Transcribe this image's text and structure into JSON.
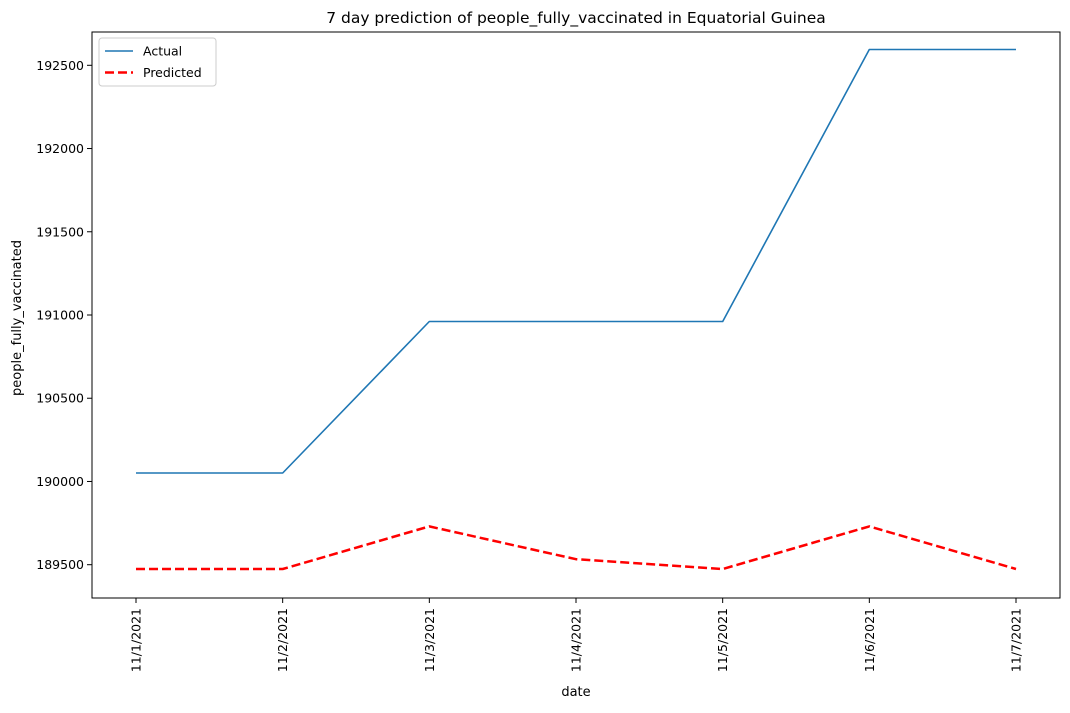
{
  "chart_data": {
    "type": "line",
    "title": "7 day prediction of people_fully_vaccinated in Equatorial Guinea",
    "xlabel": "date",
    "ylabel": "people_fully_vaccinated",
    "x": [
      "11/1/2021",
      "11/2/2021",
      "11/3/2021",
      "11/4/2021",
      "11/5/2021",
      "11/6/2021",
      "11/7/2021"
    ],
    "yticks": [
      "189500",
      "190000",
      "190500",
      "191000",
      "191500",
      "192000",
      "192500"
    ],
    "ylim": [
      189300,
      192700
    ],
    "grid": false,
    "legend_position": "upper left",
    "series": [
      {
        "name": "Actual",
        "values": [
          190051,
          190051,
          190961,
          190961,
          190961,
          192595,
          192595
        ],
        "color": "#1f77b4",
        "style": "solid"
      },
      {
        "name": "Predicted",
        "values": [
          189474,
          189474,
          189730,
          189533,
          189474,
          189730,
          189474
        ],
        "color": "#ff0000",
        "style": "dashed"
      }
    ]
  }
}
